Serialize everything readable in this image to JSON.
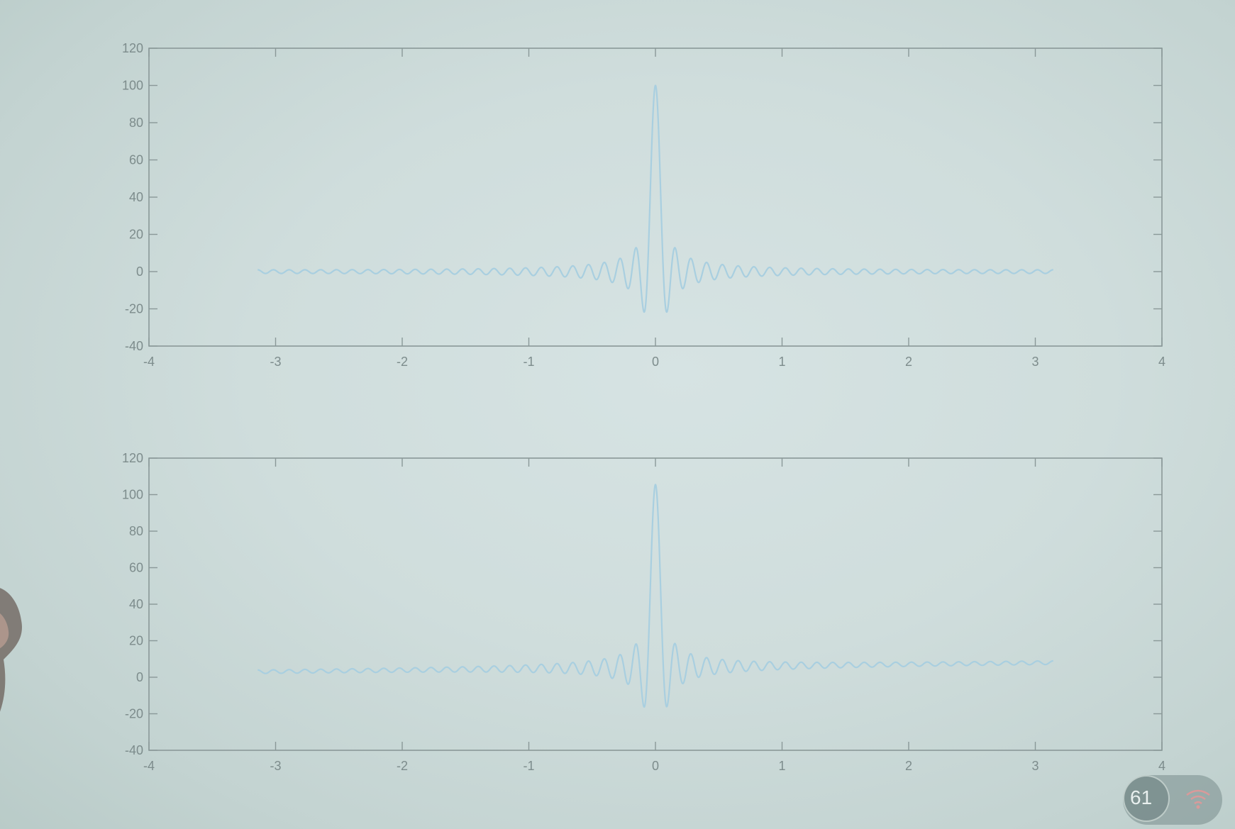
{
  "chart_data": [
    {
      "type": "line",
      "title": "",
      "xlabel": "",
      "ylabel": "",
      "xlim": [
        -4,
        4
      ],
      "ylim": [
        -40,
        120
      ],
      "x_ticks": [
        -4,
        -3,
        -2,
        -1,
        0,
        1,
        2,
        3,
        4
      ],
      "x_tick_labels": [
        "-4",
        "-3",
        "-2",
        "-1",
        "0",
        "1",
        "2",
        "3",
        "4"
      ],
      "y_ticks": [
        -40,
        -20,
        0,
        20,
        40,
        60,
        80,
        100,
        120
      ],
      "y_tick_labels": [
        "-40",
        "-20",
        "0",
        "20",
        "40",
        "60",
        "80",
        "100",
        "120"
      ],
      "grid": false,
      "series": [
        {
          "function": "sinc",
          "amplitude": 100,
          "n_harmonics": 50,
          "x_range": [
            -3.1416,
            3.1416
          ],
          "peak": [
            0,
            100
          ],
          "min_value": -22,
          "offset": [
            0,
            0
          ],
          "color": "#a9cfe0"
        }
      ]
    },
    {
      "type": "line",
      "title": "",
      "xlabel": "",
      "ylabel": "",
      "xlim": [
        -4,
        4
      ],
      "ylim": [
        -40,
        120
      ],
      "x_ticks": [
        -4,
        -3,
        -2,
        -1,
        0,
        1,
        2,
        3,
        4
      ],
      "x_tick_labels": [
        "-4",
        "-3",
        "-2",
        "-1",
        "0",
        "1",
        "2",
        "3",
        "4"
      ],
      "y_ticks": [
        -40,
        -20,
        0,
        20,
        40,
        60,
        80,
        100,
        120
      ],
      "y_tick_labels": [
        "-40",
        "-20",
        "0",
        "20",
        "40",
        "60",
        "80",
        "100",
        "120"
      ],
      "grid": false,
      "series": [
        {
          "function": "sinc",
          "amplitude": 100,
          "n_harmonics": 50,
          "x_range": [
            -3.1416,
            3.1416
          ],
          "peak": [
            0,
            104
          ],
          "min_value": -16,
          "offset": [
            3,
            8
          ],
          "color": "#a9cfe0"
        }
      ]
    }
  ],
  "overlay": {
    "value": "61"
  }
}
